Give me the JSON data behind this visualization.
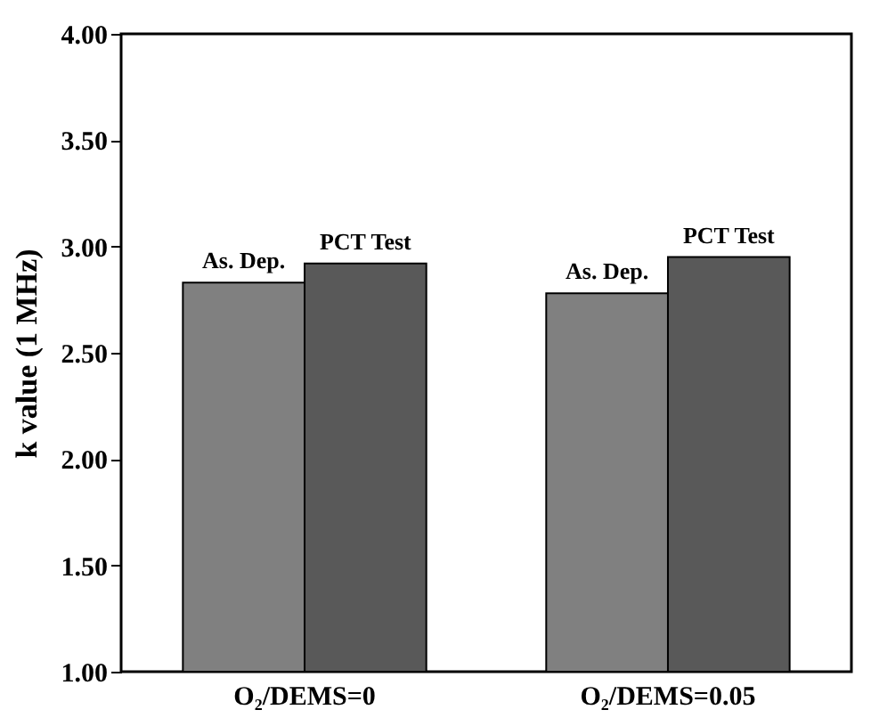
{
  "chart_data": {
    "type": "bar",
    "ylabel": "k value (1 MHz)",
    "categories": [
      "O₂/DEMS=0",
      "O₂/DEMS=0.05"
    ],
    "series": [
      {
        "name": "As. Dep.",
        "color": "#808080",
        "values": [
          2.83,
          2.78
        ]
      },
      {
        "name": "PCT Test",
        "color": "#595959",
        "values": [
          2.92,
          2.95
        ]
      }
    ],
    "ylim": [
      1,
      4
    ],
    "yticks": [
      {
        "value": 1,
        "label": "1.00"
      },
      {
        "value": 1.5,
        "label": "1.50"
      },
      {
        "value": 2,
        "label": "2.00"
      },
      {
        "value": 2.5,
        "label": "2.50"
      },
      {
        "value": 3,
        "label": "3.00"
      },
      {
        "value": 3.5,
        "label": "3.50"
      },
      {
        "value": 4,
        "label": "4.00"
      }
    ],
    "grid": false,
    "legend": false
  }
}
